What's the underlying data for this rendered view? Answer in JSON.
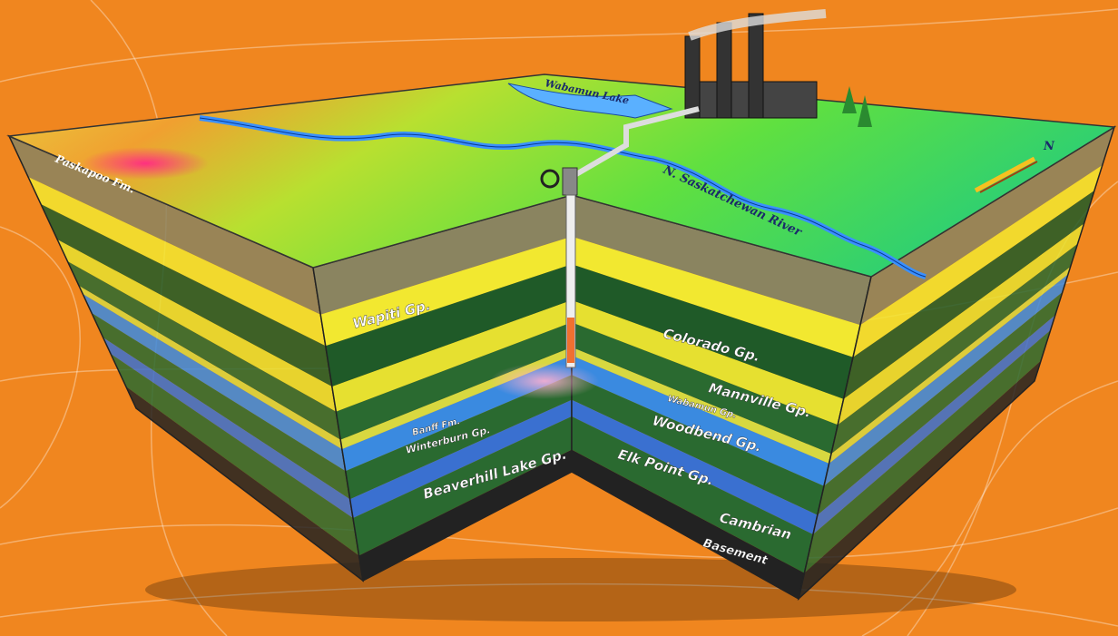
{
  "surface_labels": {
    "formation": "Paskapoo Fm.",
    "lake": "Wabamun Lake",
    "river": "N. Saskatchewan River",
    "north": "N"
  },
  "layers": {
    "left": [
      "Wapiti Gp.",
      "Banff Fm.",
      "Winterburn Gp.",
      "Beaverhill Lake Gp."
    ],
    "right": [
      "Colorado Gp.",
      "Mannville Gp.",
      "Wabamun Gp.",
      "Woodbend Gp.",
      "Elk Point Gp.",
      "Cambrian",
      "Basement"
    ]
  }
}
